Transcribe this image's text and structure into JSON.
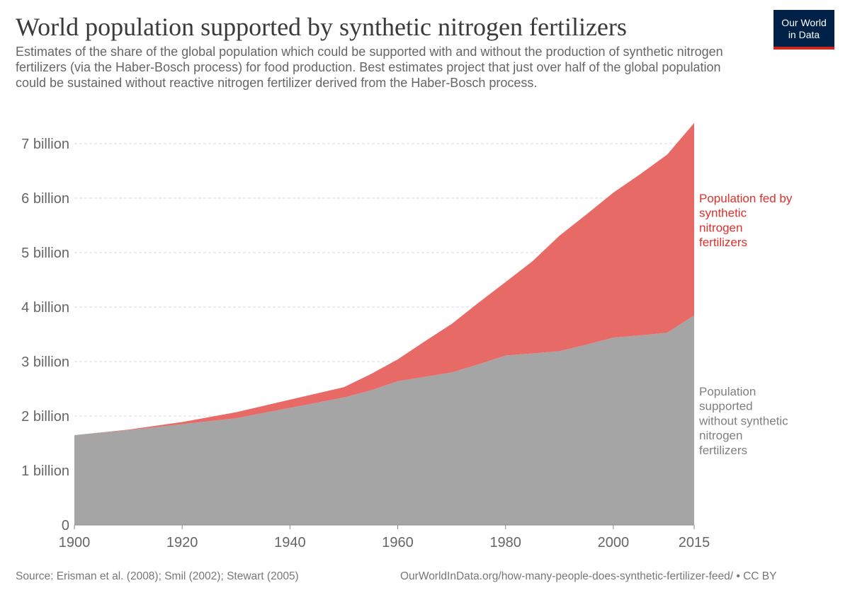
{
  "header": {
    "title": "World population supported by synthetic nitrogen fertilizers",
    "subtitle": "Estimates of the share of the global population which could be supported with and without the production of synthetic nitrogen fertilizers (via the Haber-Bosch process) for food production. Best estimates project that just over half of the global population could be sustained without reactive nitrogen fertilizer derived from the Haber-Bosch process."
  },
  "logo": {
    "line1": "Our World",
    "line2": "in Data",
    "bg_color": "#002147",
    "accent_color": "#ce261e"
  },
  "footer": {
    "source": "Source: Erisman et al. (2008); Smil (2002); Stewart (2005)",
    "url": "OurWorldInData.org/how-many-people-does-synthetic-fertilizer-feed/ • CC BY"
  },
  "chart_data": {
    "type": "area",
    "stacked": true,
    "title": "World population supported by synthetic nitrogen fertilizers",
    "xlabel": "",
    "ylabel": "",
    "xlim": [
      1900,
      2015
    ],
    "ylim": [
      0,
      7400000000
    ],
    "grid": true,
    "x_ticks": [
      1900,
      1920,
      1940,
      1960,
      1980,
      2000,
      2015
    ],
    "y_ticks": [
      {
        "value": 0,
        "label": "0"
      },
      {
        "value": 1000000000,
        "label": "1 billion"
      },
      {
        "value": 2000000000,
        "label": "2 billion"
      },
      {
        "value": 3000000000,
        "label": "3 billion"
      },
      {
        "value": 4000000000,
        "label": "4 billion"
      },
      {
        "value": 5000000000,
        "label": "5 billion"
      },
      {
        "value": 6000000000,
        "label": "6 billion"
      },
      {
        "value": 7000000000,
        "label": "7 billion"
      }
    ],
    "x": [
      1900,
      1910,
      1920,
      1930,
      1940,
      1950,
      1955,
      1960,
      1965,
      1970,
      1975,
      1980,
      1985,
      1990,
      1995,
      2000,
      2005,
      2010,
      2015
    ],
    "series": [
      {
        "name": "Population supported without synthetic nitrogen fertilizers",
        "color": "#a5a5a5",
        "label_color": "#7f7f7f",
        "values": [
          1650000000,
          1740000000,
          1850000000,
          1960000000,
          2150000000,
          2340000000,
          2470000000,
          2640000000,
          2720000000,
          2800000000,
          2950000000,
          3110000000,
          3150000000,
          3190000000,
          3310000000,
          3440000000,
          3480000000,
          3530000000,
          3850000000
        ]
      },
      {
        "name": "Population fed by synthetic nitrogen fertilizers",
        "color": "#e86a66",
        "label_color": "#e0302b",
        "values": [
          0,
          10000000,
          40000000,
          110000000,
          150000000,
          190000000,
          300000000,
          400000000,
          650000000,
          890000000,
          1130000000,
          1350000000,
          1690000000,
          2120000000,
          2390000000,
          2660000000,
          2960000000,
          3270000000,
          3530000000
        ]
      }
    ],
    "series_labels": [
      {
        "lines": [
          "Population fed by",
          "synthetic",
          "nitrogen",
          "fertilizers"
        ]
      },
      {
        "lines": [
          "Population",
          "supported",
          "without synthetic",
          "nitrogen",
          "fertilizers"
        ]
      }
    ]
  }
}
